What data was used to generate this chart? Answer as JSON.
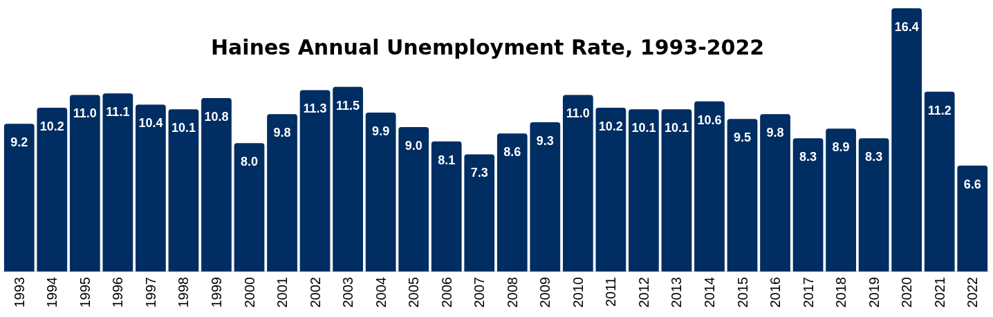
{
  "chart_data": {
    "type": "bar",
    "title": "Haines Annual Unemployment Rate, 1993-2022",
    "categories": [
      "1993",
      "1994",
      "1995",
      "1996",
      "1997",
      "1998",
      "1999",
      "2000",
      "2001",
      "2002",
      "2003",
      "2004",
      "2005",
      "2006",
      "2007",
      "2008",
      "2009",
      "2010",
      "2011",
      "2012",
      "2013",
      "2014",
      "2015",
      "2016",
      "2017",
      "2018",
      "2019",
      "2020",
      "2021",
      "2022"
    ],
    "values": [
      9.2,
      10.2,
      11.0,
      11.1,
      10.4,
      10.1,
      10.8,
      8.0,
      9.8,
      11.3,
      11.5,
      9.9,
      9.0,
      8.1,
      7.3,
      8.6,
      9.3,
      11.0,
      10.2,
      10.1,
      10.1,
      10.6,
      9.5,
      9.8,
      8.3,
      8.9,
      8.3,
      16.4,
      11.2,
      6.6
    ],
    "value_labels": [
      "9.2",
      "10.2",
      "11.0",
      "11.1",
      "10.4",
      "10.1",
      "10.8",
      "8.0",
      "9.8",
      "11.3",
      "11.5",
      "9.9",
      "9.0",
      "8.1",
      "7.3",
      "8.6",
      "9.3",
      "11.0",
      "10.2",
      "10.1",
      "10.1",
      "10.6",
      "9.5",
      "9.8",
      "8.3",
      "8.9",
      "8.3",
      "16.4",
      "11.2",
      "6.6"
    ],
    "color": "#002d62",
    "grid": false
  }
}
